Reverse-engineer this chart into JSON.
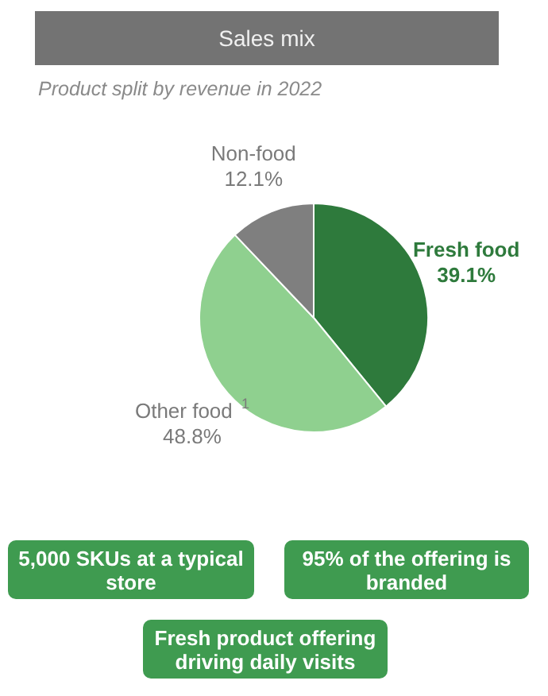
{
  "chart_data": {
    "type": "pie",
    "title": "Sales mix",
    "subtitle": "Product split by revenue in 2022",
    "categories": [
      "Fresh food",
      "Other food $^{1}$",
      "Non-food"
    ],
    "values": [
      39.1,
      48.8,
      12.1
    ],
    "value_labels": [
      "39.1%",
      "48.8%",
      "12.1%"
    ],
    "colors": [
      "#2e7a3c",
      "#8fd08f",
      "#7f7f7f"
    ],
    "legend": false,
    "annotations": [
      "5,000 SKUs at a typical store",
      "95% of the offering is branded",
      "Fresh product offering driving daily visits"
    ]
  }
}
